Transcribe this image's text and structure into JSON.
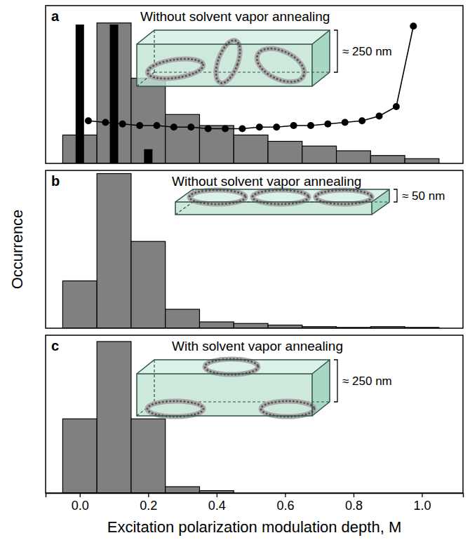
{
  "chart_data": [
    {
      "type": "histogram",
      "panel": "a",
      "title": "Without solvent vapor annealing",
      "inset_label": "≈ 250 nm",
      "bins": [
        -0.05,
        0.05,
        0.15,
        0.25,
        0.35,
        0.45,
        0.55,
        0.65,
        0.75,
        0.85,
        0.95,
        1.05
      ],
      "xlim": [
        -0.1,
        1.12
      ],
      "ylim": [
        0,
        100
      ],
      "tick_labels": false,
      "series": [
        {
          "type": "histogram",
          "color": "#808080",
          "values": [
            18,
            89,
            54,
            31,
            24,
            18,
            14,
            11,
            8,
            5,
            3
          ]
        },
        {
          "type": "bar",
          "color": "#000000",
          "x": [
            0,
            0.1,
            0.2
          ],
          "values": [
            88,
            88,
            9
          ]
        },
        {
          "type": "line",
          "color": "#000000",
          "marker": "circle",
          "x": [
            0.025,
            0.075,
            0.125,
            0.175,
            0.225,
            0.275,
            0.325,
            0.375,
            0.425,
            0.475,
            0.525,
            0.575,
            0.625,
            0.675,
            0.725,
            0.775,
            0.825,
            0.875,
            0.925,
            0.975
          ],
          "values": [
            27,
            26,
            25,
            24,
            24,
            23,
            23,
            22,
            22,
            22,
            23,
            23,
            24,
            24,
            25,
            26,
            27,
            30,
            36,
            87
          ]
        }
      ]
    },
    {
      "type": "histogram",
      "panel": "b",
      "title": "Without solvent vapor annealing",
      "inset_label": "≈ 50 nm",
      "ylabel": "Occurrence",
      "bins": [
        -0.05,
        0.05,
        0.15,
        0.25,
        0.35,
        0.45,
        0.55,
        0.65,
        0.75,
        0.85,
        0.95,
        1.05
      ],
      "xlim": [
        -0.1,
        1.12
      ],
      "ylim": [
        0,
        100
      ],
      "tick_labels": false,
      "series": [
        {
          "type": "histogram",
          "color": "#808080",
          "values": [
            30,
            98,
            55,
            12,
            4,
            3,
            2,
            1,
            0.5,
            1,
            0.5
          ]
        }
      ]
    },
    {
      "type": "histogram",
      "panel": "c",
      "title": "With solvent vapor annealing",
      "inset_label": "≈ 250 nm",
      "xlabel": "Excitation polarization modulation depth, M",
      "bins": [
        -0.05,
        0.05,
        0.15,
        0.25,
        0.35,
        0.45,
        0.55,
        0.65,
        0.75,
        0.85,
        0.95,
        1.05
      ],
      "xlim": [
        -0.1,
        1.12
      ],
      "ylim": [
        0,
        100
      ],
      "tick_labels": "x",
      "xticks": [
        {
          "value": 0,
          "label": "0.0"
        },
        {
          "value": 0.2,
          "label": "0.2"
        },
        {
          "value": 0.4,
          "label": "0.4"
        },
        {
          "value": 0.6,
          "label": "0.6"
        },
        {
          "value": 0.8,
          "label": "0.8"
        },
        {
          "value": 1,
          "label": "1.0"
        }
      ],
      "series": [
        {
          "type": "histogram",
          "color": "#808080",
          "values": [
            47,
            96,
            47,
            4,
            1.5,
            0,
            0,
            0,
            0,
            0,
            0
          ]
        }
      ]
    }
  ]
}
